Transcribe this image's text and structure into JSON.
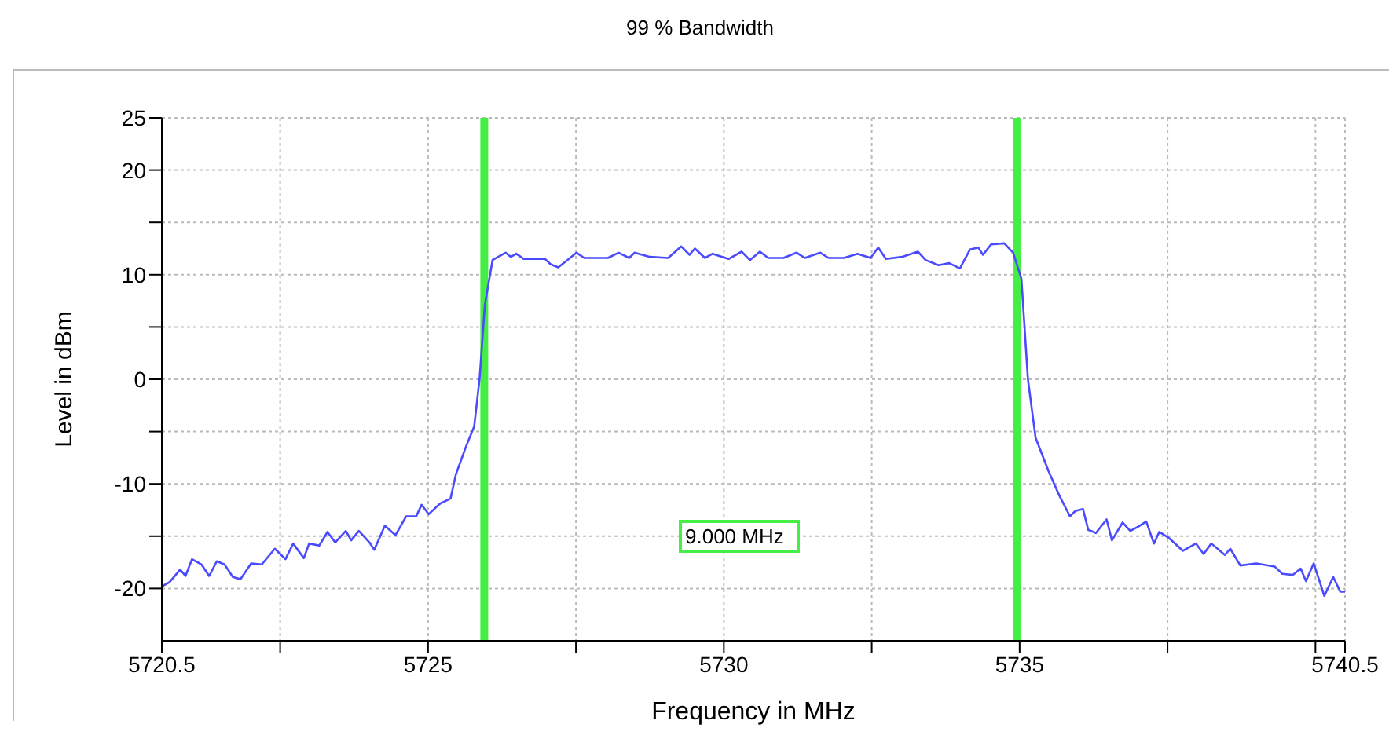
{
  "chart_data": {
    "type": "line",
    "title": "99 % Bandwidth",
    "xlabel": "Frequency in MHz",
    "ylabel": "Level in dBm",
    "xlim": [
      5720.5,
      5740.5
    ],
    "xticks": [
      5720.5,
      {
        "value": 5722.5,
        "label": null
      },
      5725,
      {
        "value": 5727.5,
        "label": null
      },
      5730,
      {
        "value": 5732.5,
        "label": null
      },
      5735,
      {
        "value": 5737.5,
        "label": null
      },
      {
        "value": 5740,
        "label": null
      },
      5740.5
    ],
    "ylim": [
      -25,
      25
    ],
    "yticks": [
      -20,
      {
        "value": -15,
        "label": null
      },
      -10,
      {
        "value": -5,
        "label": null
      },
      0,
      {
        "value": 5,
        "label": null
      },
      10,
      {
        "value": 15,
        "label": null
      },
      20,
      25
    ],
    "grid": true,
    "marker": "none",
    "line_style": "solid",
    "series": [
      {
        "color": "#4a4aff",
        "x": [
          5720.5,
          5720.63,
          5720.81,
          5720.9,
          5721.01,
          5721.17,
          5721.3,
          5721.43,
          5721.56,
          5721.7,
          5721.83,
          5722.01,
          5722.19,
          5722.41,
          5722.59,
          5722.72,
          5722.9,
          5722.99,
          5723.16,
          5723.3,
          5723.43,
          5723.61,
          5723.7,
          5723.83,
          5724.01,
          5724.09,
          5724.27,
          5724.45,
          5724.63,
          5724.8,
          5724.89,
          5725.01,
          5725.2,
          5725.38,
          5725.47,
          5725.65,
          5725.78,
          5725.87,
          5725.96,
          5726.09,
          5726.31,
          5726.4,
          5726.49,
          5726.62,
          5726.98,
          5727.07,
          5727.2,
          5727.38,
          5727.51,
          5727.64,
          5728.04,
          5728.22,
          5728.4,
          5728.49,
          5728.75,
          5729.06,
          5729.28,
          5729.42,
          5729.51,
          5729.68,
          5729.81,
          5730.08,
          5730.3,
          5730.44,
          5730.61,
          5730.75,
          5731.01,
          5731.23,
          5731.37,
          5731.63,
          5731.77,
          5732.03,
          5732.26,
          5732.48,
          5732.61,
          5732.74,
          5733.01,
          5733.28,
          5733.41,
          5733.63,
          5733.81,
          5733.99,
          5734.16,
          5734.3,
          5734.38,
          5734.52,
          5734.74,
          5734.89,
          5735.03,
          5735.14,
          5735.27,
          5735.49,
          5735.67,
          5735.85,
          5735.94,
          5736.07,
          5736.16,
          5736.29,
          5736.47,
          5736.56,
          5736.74,
          5736.87,
          5737.0,
          5737.14,
          5737.27,
          5737.36,
          5737.53,
          5737.76,
          5737.98,
          5738.11,
          5738.24,
          5738.47,
          5738.56,
          5738.73,
          5739.0,
          5739.31,
          5739.44,
          5739.62,
          5739.75,
          5739.84,
          5739.97,
          5740.15,
          5740.3,
          5740.42,
          5740.5
        ],
        "values": [
          -19.8,
          -19.4,
          -18.2,
          -18.8,
          -17.2,
          -17.7,
          -18.8,
          -17.4,
          -17.7,
          -18.9,
          -19.1,
          -17.6,
          -17.7,
          -16.2,
          -17.2,
          -15.7,
          -17.1,
          -15.7,
          -15.9,
          -14.6,
          -15.6,
          -14.5,
          -15.4,
          -14.5,
          -15.6,
          -16.3,
          -14.0,
          -14.9,
          -13.1,
          -13.1,
          -12.0,
          -12.9,
          -11.9,
          -11.4,
          -9.1,
          -6.3,
          -4.5,
          0,
          7.1,
          11.4,
          12.1,
          11.7,
          12.0,
          11.5,
          11.5,
          11.0,
          10.7,
          11.5,
          12.1,
          11.6,
          11.6,
          12.1,
          11.6,
          12.1,
          11.7,
          11.6,
          12.7,
          11.9,
          12.5,
          11.6,
          12.0,
          11.5,
          12.2,
          11.4,
          12.2,
          11.6,
          11.6,
          12.1,
          11.6,
          12.1,
          11.6,
          11.6,
          12.0,
          11.6,
          12.6,
          11.5,
          11.7,
          12.2,
          11.4,
          10.9,
          11.1,
          10.6,
          12.4,
          12.6,
          11.9,
          12.9,
          13.0,
          12.1,
          9.6,
          0,
          -5.6,
          -8.8,
          -11.1,
          -13.1,
          -12.6,
          -12.4,
          -14.4,
          -14.7,
          -13.4,
          -15.4,
          -13.7,
          -14.5,
          -14.1,
          -13.6,
          -15.7,
          -14.6,
          -15.2,
          -16.4,
          -15.7,
          -16.7,
          -15.7,
          -16.8,
          -16.2,
          -17.8,
          -17.6,
          -17.9,
          -18.6,
          -18.7,
          -18.1,
          -19.3,
          -17.6,
          -20.7,
          -18.9,
          -20.3,
          -20.3
        ]
      }
    ],
    "ref_lines": [
      {
        "axis": "x",
        "value": 5725.95,
        "color": "#44ee44"
      },
      {
        "axis": "x",
        "value": 5734.95,
        "color": "#44ee44"
      }
    ],
    "annotations": [
      "9.000 MHz"
    ]
  }
}
